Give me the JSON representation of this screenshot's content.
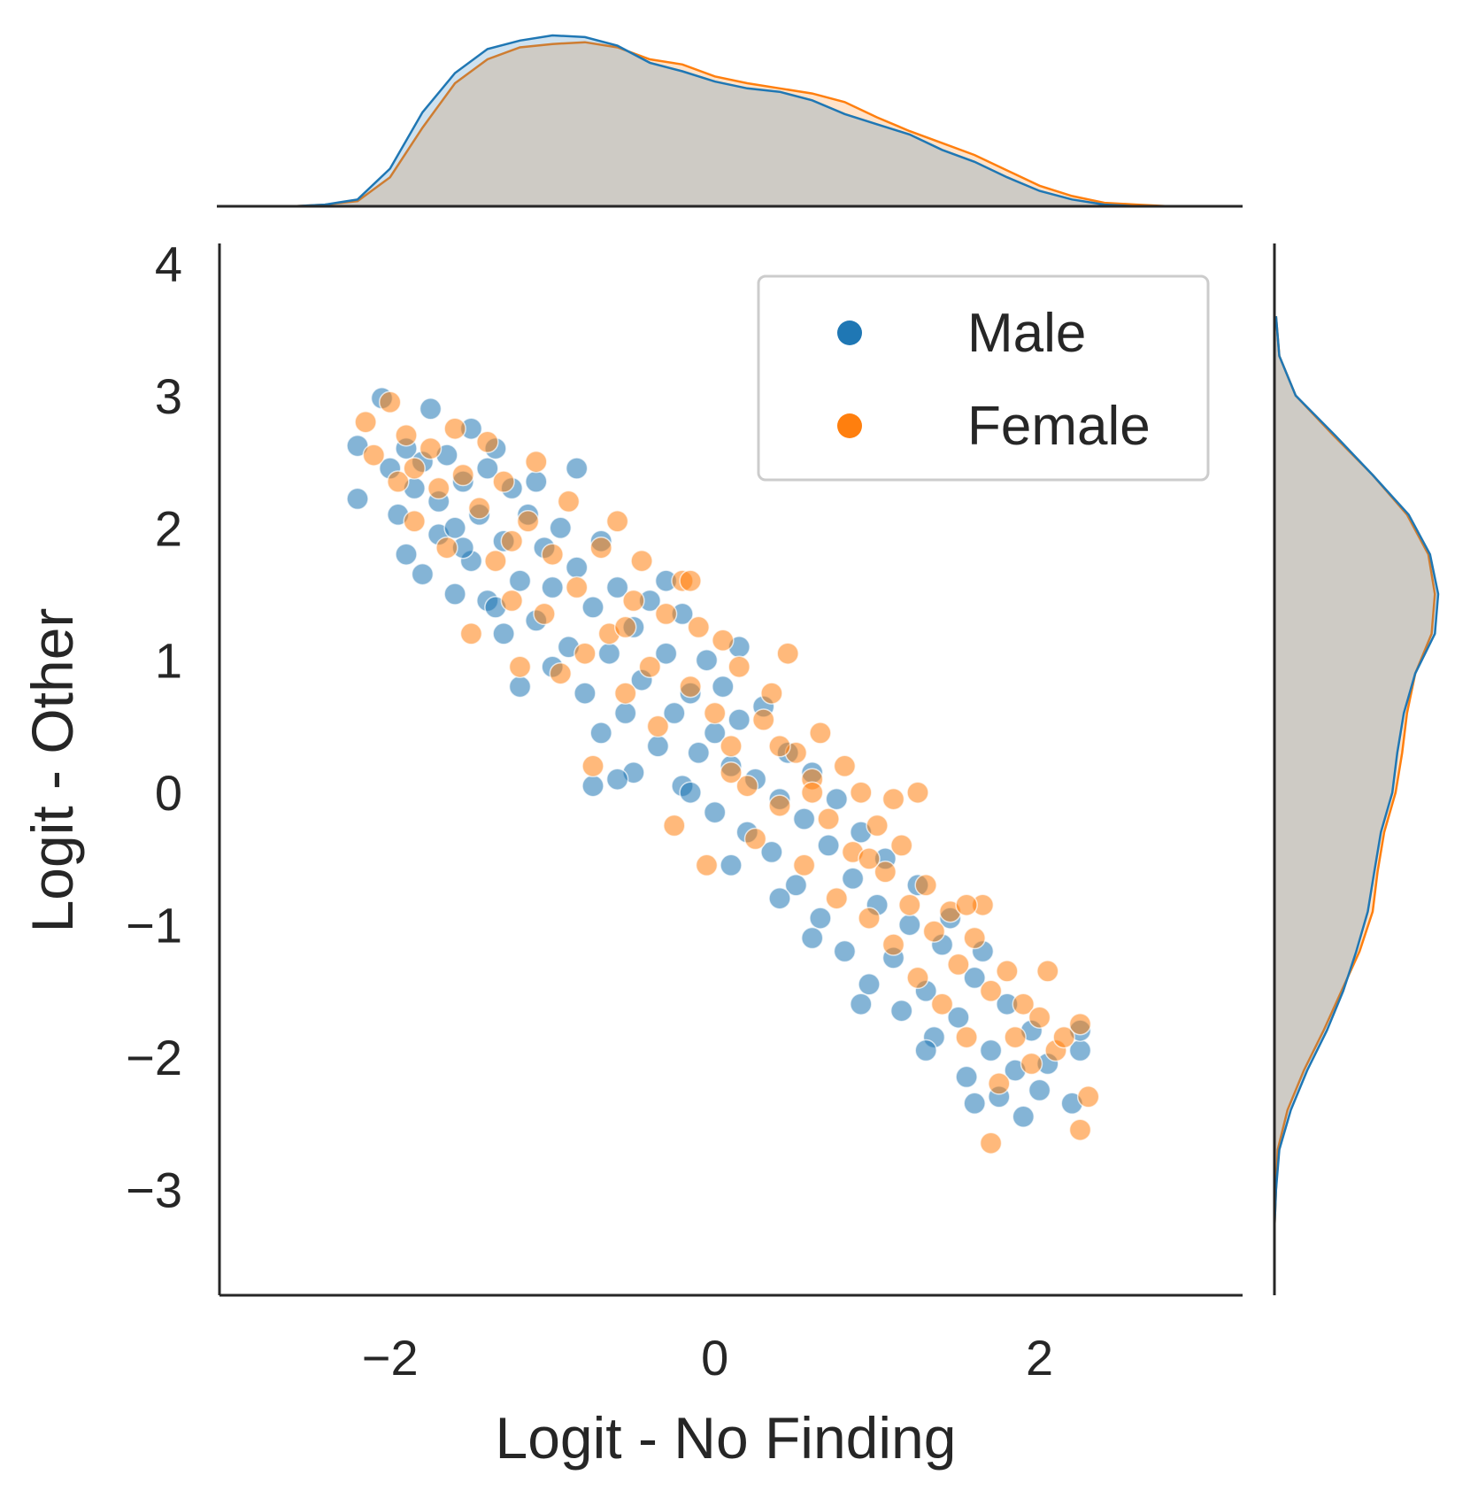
{
  "chart_data": {
    "type": "scatter",
    "xlabel": "Logit - No Finding",
    "ylabel": "Logit - Other",
    "xlim": [
      -3.05,
      3.25
    ],
    "ylim": [
      -3.8,
      4.15
    ],
    "xticks": [
      -2,
      0,
      2
    ],
    "yticks": [
      -3,
      -2,
      -1,
      0,
      1,
      2,
      3,
      4
    ],
    "xtick_labels": [
      "−2",
      "0",
      "2"
    ],
    "ytick_labels": [
      "−3",
      "−2",
      "−1",
      "0",
      "1",
      "2",
      "3",
      "4"
    ],
    "grid": false,
    "legend_position": "top-right",
    "marginals": "kde",
    "series": [
      {
        "name": "Male",
        "color": "#1f77b4",
        "points": [
          [
            -2.2,
            2.62
          ],
          [
            -2.2,
            2.22
          ],
          [
            -2.05,
            2.98
          ],
          [
            -2.0,
            2.45
          ],
          [
            -1.95,
            2.1
          ],
          [
            -1.9,
            2.6
          ],
          [
            -1.9,
            1.8
          ],
          [
            -1.85,
            2.3
          ],
          [
            -1.8,
            2.5
          ],
          [
            -1.8,
            1.65
          ],
          [
            -1.75,
            2.9
          ],
          [
            -1.7,
            2.2
          ],
          [
            -1.7,
            1.95
          ],
          [
            -1.65,
            2.55
          ],
          [
            -1.6,
            2.0
          ],
          [
            -1.6,
            1.5
          ],
          [
            -1.55,
            2.35
          ],
          [
            -1.5,
            2.75
          ],
          [
            -1.5,
            1.75
          ],
          [
            -1.45,
            2.1
          ],
          [
            -1.4,
            2.45
          ],
          [
            -1.4,
            1.45
          ],
          [
            -1.35,
            2.6
          ],
          [
            -1.3,
            1.9
          ],
          [
            -1.3,
            1.2
          ],
          [
            -1.25,
            2.3
          ],
          [
            -1.2,
            1.6
          ],
          [
            -1.2,
            0.8
          ],
          [
            -1.15,
            2.1
          ],
          [
            -1.1,
            1.3
          ],
          [
            -1.05,
            1.85
          ],
          [
            -1.0,
            0.95
          ],
          [
            -1.0,
            1.55
          ],
          [
            -0.95,
            2.0
          ],
          [
            -0.9,
            1.1
          ],
          [
            -0.85,
            1.7
          ],
          [
            -0.8,
            0.75
          ],
          [
            -0.75,
            1.4
          ],
          [
            -0.7,
            1.9
          ],
          [
            -0.7,
            0.45
          ],
          [
            -0.65,
            1.05
          ],
          [
            -0.6,
            1.55
          ],
          [
            -0.55,
            0.6
          ],
          [
            -0.5,
            1.25
          ],
          [
            -0.5,
            0.15
          ],
          [
            -0.45,
            0.85
          ],
          [
            -0.4,
            1.45
          ],
          [
            -0.35,
            0.35
          ],
          [
            -0.3,
            1.05
          ],
          [
            -0.25,
            0.6
          ],
          [
            -0.2,
            1.35
          ],
          [
            -0.2,
            0.05
          ],
          [
            -0.15,
            0.75
          ],
          [
            -0.1,
            0.3
          ],
          [
            -0.05,
            1.0
          ],
          [
            0.0,
            0.45
          ],
          [
            0.0,
            -0.15
          ],
          [
            0.05,
            0.8
          ],
          [
            0.1,
            0.2
          ],
          [
            0.1,
            -0.55
          ],
          [
            0.15,
            0.55
          ],
          [
            0.2,
            -0.3
          ],
          [
            0.25,
            0.1
          ],
          [
            0.3,
            0.65
          ],
          [
            0.35,
            -0.45
          ],
          [
            0.4,
            -0.05
          ],
          [
            0.45,
            0.3
          ],
          [
            0.5,
            -0.7
          ],
          [
            0.55,
            -0.2
          ],
          [
            0.6,
            0.15
          ],
          [
            0.65,
            -0.95
          ],
          [
            0.7,
            -0.4
          ],
          [
            0.75,
            -0.05
          ],
          [
            0.8,
            -1.2
          ],
          [
            0.85,
            -0.65
          ],
          [
            0.9,
            -0.3
          ],
          [
            0.95,
            -1.45
          ],
          [
            1.0,
            -0.85
          ],
          [
            1.05,
            -0.5
          ],
          [
            1.1,
            -1.25
          ],
          [
            1.15,
            -1.65
          ],
          [
            1.2,
            -1.0
          ],
          [
            1.25,
            -0.7
          ],
          [
            1.3,
            -1.5
          ],
          [
            1.35,
            -1.85
          ],
          [
            1.4,
            -1.15
          ],
          [
            1.45,
            -0.95
          ],
          [
            1.5,
            -1.7
          ],
          [
            1.55,
            -2.15
          ],
          [
            1.6,
            -1.4
          ],
          [
            1.65,
            -1.2
          ],
          [
            1.7,
            -1.95
          ],
          [
            1.75,
            -2.3
          ],
          [
            1.8,
            -1.6
          ],
          [
            1.85,
            -2.1
          ],
          [
            1.9,
            -2.45
          ],
          [
            1.95,
            -1.8
          ],
          [
            2.0,
            -2.25
          ],
          [
            2.05,
            -2.05
          ],
          [
            2.2,
            -2.35
          ],
          [
            2.25,
            -1.95
          ],
          [
            2.25,
            -1.8
          ],
          [
            -1.35,
            1.4
          ],
          [
            -1.1,
            2.35
          ],
          [
            -0.6,
            0.1
          ],
          [
            -0.75,
            0.05
          ],
          [
            -0.3,
            1.6
          ],
          [
            0.15,
            1.1
          ],
          [
            0.4,
            -0.8
          ],
          [
            0.9,
            -1.6
          ],
          [
            1.3,
            -1.95
          ],
          [
            -1.55,
            1.85
          ],
          [
            -0.85,
            2.45
          ],
          [
            -0.15,
            0.0
          ],
          [
            0.6,
            -1.1
          ],
          [
            1.6,
            -2.35
          ]
        ]
      },
      {
        "name": "Female",
        "color": "#ff7f0e",
        "points": [
          [
            -2.15,
            2.8
          ],
          [
            -2.1,
            2.55
          ],
          [
            -2.0,
            2.95
          ],
          [
            -1.95,
            2.35
          ],
          [
            -1.9,
            2.7
          ],
          [
            -1.85,
            2.05
          ],
          [
            -1.75,
            2.6
          ],
          [
            -1.7,
            2.3
          ],
          [
            -1.65,
            1.85
          ],
          [
            -1.6,
            2.75
          ],
          [
            -1.55,
            2.4
          ],
          [
            -1.5,
            1.2
          ],
          [
            -1.45,
            2.15
          ],
          [
            -1.4,
            2.65
          ],
          [
            -1.35,
            1.75
          ],
          [
            -1.3,
            2.35
          ],
          [
            -1.25,
            1.45
          ],
          [
            -1.2,
            0.95
          ],
          [
            -1.15,
            2.05
          ],
          [
            -1.1,
            2.5
          ],
          [
            -1.05,
            1.35
          ],
          [
            -1.0,
            1.8
          ],
          [
            -0.95,
            0.9
          ],
          [
            -0.9,
            2.2
          ],
          [
            -0.85,
            1.55
          ],
          [
            -0.8,
            1.05
          ],
          [
            -0.75,
            0.2
          ],
          [
            -0.7,
            1.85
          ],
          [
            -0.65,
            1.2
          ],
          [
            -0.6,
            2.05
          ],
          [
            -0.55,
            0.75
          ],
          [
            -0.5,
            1.45
          ],
          [
            -0.45,
            1.75
          ],
          [
            -0.4,
            0.95
          ],
          [
            -0.35,
            0.5
          ],
          [
            -0.3,
            1.35
          ],
          [
            -0.25,
            -0.25
          ],
          [
            -0.2,
            1.6
          ],
          [
            -0.15,
            0.8
          ],
          [
            -0.1,
            1.25
          ],
          [
            -0.05,
            -0.55
          ],
          [
            0.0,
            0.6
          ],
          [
            0.05,
            1.15
          ],
          [
            0.1,
            0.35
          ],
          [
            0.15,
            0.95
          ],
          [
            0.2,
            0.05
          ],
          [
            0.25,
            -0.35
          ],
          [
            0.3,
            0.55
          ],
          [
            0.35,
            0.75
          ],
          [
            0.4,
            -0.1
          ],
          [
            0.45,
            1.05
          ],
          [
            0.5,
            0.3
          ],
          [
            0.55,
            -0.55
          ],
          [
            0.6,
            0.1
          ],
          [
            0.65,
            0.45
          ],
          [
            0.7,
            -0.2
          ],
          [
            0.75,
            -0.8
          ],
          [
            0.8,
            0.2
          ],
          [
            0.85,
            -0.45
          ],
          [
            0.9,
            0.0
          ],
          [
            0.95,
            -0.95
          ],
          [
            1.0,
            -0.25
          ],
          [
            1.05,
            -0.6
          ],
          [
            1.1,
            -1.15
          ],
          [
            1.15,
            -0.4
          ],
          [
            1.2,
            -0.85
          ],
          [
            1.25,
            -1.4
          ],
          [
            1.3,
            -0.7
          ],
          [
            1.35,
            -1.05
          ],
          [
            1.4,
            -1.6
          ],
          [
            1.45,
            -0.9
          ],
          [
            1.5,
            -1.3
          ],
          [
            1.55,
            -1.85
          ],
          [
            1.6,
            -1.1
          ],
          [
            1.65,
            -0.85
          ],
          [
            1.7,
            -1.5
          ],
          [
            1.7,
            -2.65
          ],
          [
            1.75,
            -2.2
          ],
          [
            1.8,
            -1.35
          ],
          [
            1.85,
            -1.85
          ],
          [
            1.9,
            -1.6
          ],
          [
            1.95,
            -2.05
          ],
          [
            2.0,
            -1.7
          ],
          [
            2.05,
            -1.35
          ],
          [
            2.1,
            -1.95
          ],
          [
            2.15,
            -1.85
          ],
          [
            2.25,
            -1.75
          ],
          [
            2.25,
            -2.55
          ],
          [
            2.3,
            -2.3
          ],
          [
            -1.85,
            2.45
          ],
          [
            -0.55,
            1.25
          ],
          [
            0.6,
            0.0
          ],
          [
            1.1,
            -0.05
          ],
          [
            1.25,
            0.0
          ],
          [
            0.4,
            0.35
          ],
          [
            -0.15,
            1.6
          ],
          [
            0.95,
            -0.5
          ],
          [
            1.55,
            -0.85
          ],
          [
            -1.25,
            1.9
          ],
          [
            0.1,
            0.15
          ]
        ]
      }
    ],
    "marginal_x": {
      "x": [
        -2.6,
        -2.4,
        -2.2,
        -2.0,
        -1.8,
        -1.6,
        -1.4,
        -1.2,
        -1.0,
        -0.8,
        -0.6,
        -0.4,
        -0.2,
        0.0,
        0.2,
        0.4,
        0.6,
        0.8,
        1.0,
        1.2,
        1.4,
        1.6,
        1.8,
        2.0,
        2.2,
        2.4,
        2.6,
        2.8
      ],
      "Male": [
        0.0,
        0.01,
        0.04,
        0.22,
        0.55,
        0.78,
        0.92,
        0.97,
        1.0,
        0.99,
        0.94,
        0.84,
        0.79,
        0.73,
        0.69,
        0.67,
        0.62,
        0.54,
        0.48,
        0.42,
        0.33,
        0.26,
        0.17,
        0.09,
        0.04,
        0.01,
        0.0,
        0.0
      ],
      "Female": [
        0.0,
        0.01,
        0.03,
        0.17,
        0.46,
        0.72,
        0.86,
        0.93,
        0.95,
        0.96,
        0.93,
        0.86,
        0.83,
        0.76,
        0.72,
        0.69,
        0.66,
        0.61,
        0.52,
        0.44,
        0.37,
        0.3,
        0.21,
        0.12,
        0.06,
        0.02,
        0.01,
        0.0
      ]
    },
    "marginal_y": {
      "y": [
        -3.6,
        -3.3,
        -3.0,
        -2.7,
        -2.4,
        -2.1,
        -1.8,
        -1.5,
        -1.2,
        -0.9,
        -0.6,
        -0.3,
        0.0,
        0.3,
        0.6,
        0.9,
        1.2,
        1.5,
        1.8,
        2.1,
        2.4,
        2.7,
        3.0,
        3.3,
        3.6
      ],
      "Male": [
        0.0,
        0.0,
        0.01,
        0.03,
        0.1,
        0.2,
        0.32,
        0.42,
        0.5,
        0.57,
        0.61,
        0.65,
        0.72,
        0.75,
        0.79,
        0.86,
        0.98,
        1.0,
        0.95,
        0.82,
        0.6,
        0.37,
        0.13,
        0.03,
        0.01
      ],
      "Female": [
        0.0,
        0.0,
        0.01,
        0.02,
        0.08,
        0.18,
        0.3,
        0.41,
        0.52,
        0.6,
        0.63,
        0.67,
        0.74,
        0.78,
        0.81,
        0.86,
        0.96,
        0.98,
        0.94,
        0.81,
        0.6,
        0.36,
        0.13,
        0.03,
        0.01
      ]
    }
  }
}
